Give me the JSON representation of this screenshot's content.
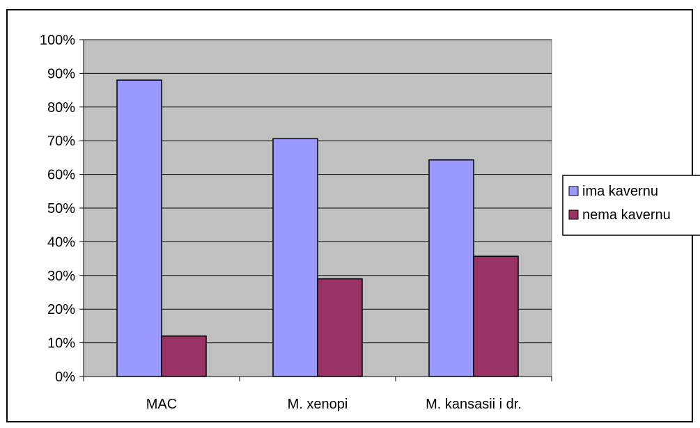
{
  "chart_data": {
    "type": "bar",
    "categories": [
      "MAC",
      "M. xenopi",
      "M. kansasii i dr."
    ],
    "series": [
      {
        "name": "ima kavernu",
        "values": [
          88,
          70.6,
          64.3
        ],
        "color": "#9999ff"
      },
      {
        "name": "nema kavernu",
        "values": [
          12,
          29,
          35.7
        ],
        "color": "#993366"
      }
    ],
    "y_ticks": [
      "0%",
      "10%",
      "20%",
      "30%",
      "40%",
      "50%",
      "60%",
      "70%",
      "80%",
      "90%",
      "100%"
    ],
    "ylim": [
      0,
      100
    ],
    "grid": true,
    "plot_background": "#c0c0c0",
    "legend_position": "right"
  }
}
